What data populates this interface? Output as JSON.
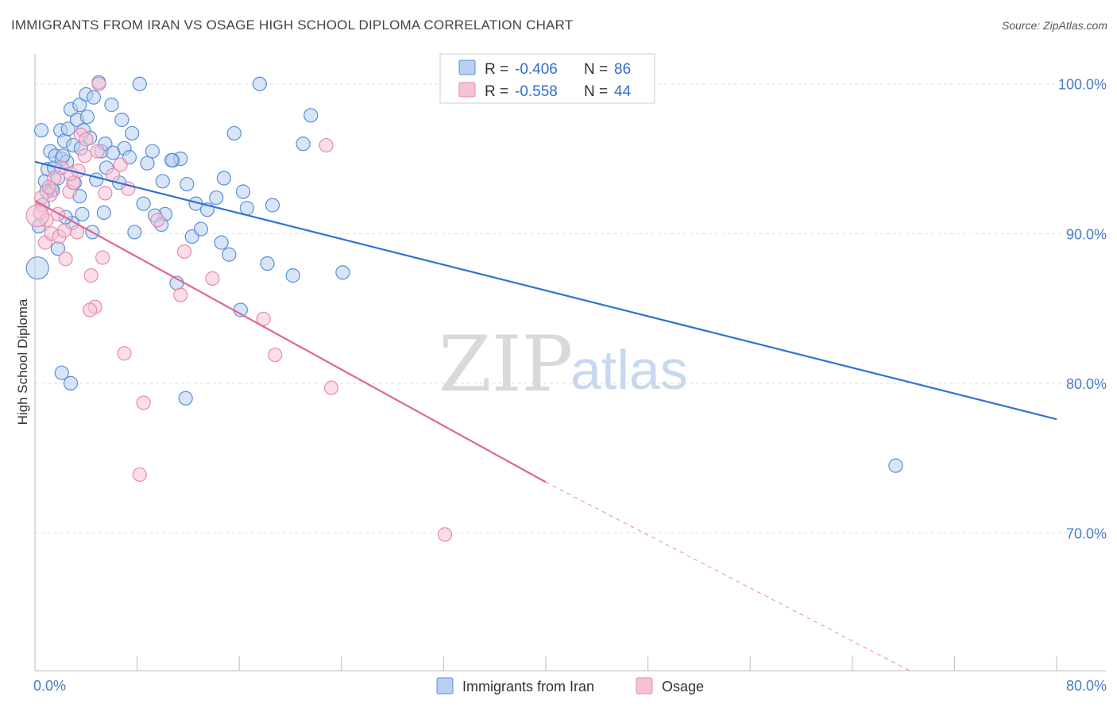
{
  "title": "IMMIGRANTS FROM IRAN VS OSAGE HIGH SCHOOL DIPLOMA CORRELATION CHART",
  "source": "Source: ZipAtlas.com",
  "watermark": {
    "zip": "ZIP",
    "atlas": "atlas"
  },
  "colors": {
    "blue_fill": "#b8d0f0",
    "blue_stroke": "#5a8fd8",
    "blue_line": "#2f72d0",
    "pink_fill": "#f5c2d4",
    "pink_stroke": "#e98aab",
    "pink_line": "#e0658f",
    "grid": "#dddddd",
    "axis_label": "#4a7cc9"
  },
  "legend": {
    "rows": [
      {
        "r_label": "R = ",
        "r_value": "-0.406",
        "n_label": "N = ",
        "n_value": "86",
        "series": "blue"
      },
      {
        "r_label": "R = ",
        "r_value": "-0.558",
        "n_label": "N = ",
        "n_value": "44",
        "series": "pink"
      }
    ]
  },
  "chart_data": {
    "type": "scatter",
    "title": "IMMIGRANTS FROM IRAN VS OSAGE HIGH SCHOOL DIPLOMA CORRELATION CHART",
    "xlabel": "",
    "ylabel": "High School Diploma",
    "xlim": [
      0,
      80
    ],
    "ylim": [
      60.8,
      102
    ],
    "x_tick_labels": [
      {
        "value": 0,
        "label": "0.0%"
      },
      {
        "value": 80,
        "label": "80.0%"
      }
    ],
    "y_tick_labels": [
      {
        "value": 100,
        "label": "100.0%"
      },
      {
        "value": 90,
        "label": "90.0%"
      },
      {
        "value": 80,
        "label": "80.0%"
      },
      {
        "value": 70,
        "label": "70.0%"
      }
    ],
    "grid": true,
    "legend_position": "top-center",
    "series": [
      {
        "name": "Immigrants from Iran",
        "color": "#5a8fd8",
        "trend": {
          "x0": 0,
          "y0": 94.8,
          "x1": 80,
          "y1": 77.6
        },
        "points": [
          [
            0.5,
            96.9
          ],
          [
            0.8,
            93.5
          ],
          [
            1,
            94.3
          ],
          [
            1.2,
            95.5
          ],
          [
            1.3,
            93.0
          ],
          [
            1.5,
            94.4
          ],
          [
            1.6,
            95.2
          ],
          [
            1.8,
            93.7
          ],
          [
            2,
            96.9
          ],
          [
            2.1,
            95.0
          ],
          [
            2.3,
            96.2
          ],
          [
            2.5,
            94.8
          ],
          [
            2.6,
            97.0
          ],
          [
            2.8,
            98.3
          ],
          [
            3,
            95.9
          ],
          [
            3.1,
            93.4
          ],
          [
            3.3,
            97.6
          ],
          [
            3.5,
            98.6
          ],
          [
            3.6,
            95.7
          ],
          [
            4,
            99.3
          ],
          [
            4.1,
            97.8
          ],
          [
            4.3,
            96.4
          ],
          [
            4.6,
            99.1
          ],
          [
            5,
            100.1
          ],
          [
            5.2,
            95.5
          ],
          [
            5.5,
            96.0
          ],
          [
            6,
            98.6
          ],
          [
            6.8,
            97.6
          ],
          [
            7,
            95.7
          ],
          [
            7.4,
            95.1
          ],
          [
            7.6,
            96.7
          ],
          [
            8.2,
            100.0
          ],
          [
            8.8,
            94.7
          ],
          [
            9.2,
            95.5
          ],
          [
            10,
            93.5
          ],
          [
            10.2,
            91.3
          ],
          [
            10.8,
            94.9
          ],
          [
            11.4,
            95.0
          ],
          [
            11.9,
            93.3
          ],
          [
            12.6,
            92.0
          ],
          [
            13.5,
            91.6
          ],
          [
            14.2,
            92.4
          ],
          [
            14.6,
            89.4
          ],
          [
            15.2,
            88.6
          ],
          [
            15.6,
            96.7
          ],
          [
            16.1,
            84.9
          ],
          [
            16.6,
            91.7
          ],
          [
            17.6,
            100.0
          ],
          [
            18.2,
            88.0
          ],
          [
            18.6,
            91.9
          ],
          [
            20.2,
            87.2
          ],
          [
            21,
            96.0
          ],
          [
            21.6,
            97.9
          ],
          [
            24.1,
            87.4
          ],
          [
            0.6,
            91.9
          ],
          [
            1.8,
            89.0
          ],
          [
            2.9,
            90.7
          ],
          [
            3.7,
            91.3
          ],
          [
            4.5,
            90.1
          ],
          [
            5.4,
            91.4
          ],
          [
            6.6,
            93.4
          ],
          [
            7.8,
            90.1
          ],
          [
            9.4,
            91.2
          ],
          [
            9.9,
            90.6
          ],
          [
            11.1,
            86.7
          ],
          [
            11.8,
            79.0
          ],
          [
            2.1,
            80.7
          ],
          [
            2.8,
            80.0
          ],
          [
            0.3,
            90.5
          ],
          [
            1.4,
            92.9
          ],
          [
            2.4,
            91.1
          ],
          [
            3.5,
            92.5
          ],
          [
            4.8,
            93.6
          ],
          [
            0.9,
            92.8
          ],
          [
            8.5,
            92.0
          ],
          [
            12.3,
            89.8
          ],
          [
            13,
            90.3
          ],
          [
            14.8,
            93.7
          ],
          [
            16.3,
            92.8
          ],
          [
            10.7,
            94.9
          ],
          [
            6.1,
            95.4
          ],
          [
            5.6,
            94.4
          ],
          [
            3.8,
            96.9
          ],
          [
            2.2,
            95.2
          ],
          [
            67.4,
            74.5
          ],
          [
            0.2,
            87.7
          ]
        ]
      },
      {
        "name": "Osage",
        "color": "#e98aab",
        "trend": {
          "x0": 0,
          "y0": 92.2,
          "x1": 40,
          "y1": 73.4
        },
        "trend_dashed": {
          "x0": 40,
          "y0": 73.4,
          "x1": 68.5,
          "y1": 60.8
        },
        "points": [
          [
            0.4,
            91.4
          ],
          [
            0.8,
            89.4
          ],
          [
            1.3,
            90.0
          ],
          [
            1.5,
            93.7
          ],
          [
            1.8,
            91.3
          ],
          [
            2.1,
            94.4
          ],
          [
            2.4,
            88.3
          ],
          [
            2.7,
            92.8
          ],
          [
            3.0,
            93.4
          ],
          [
            3.3,
            90.1
          ],
          [
            3.6,
            96.6
          ],
          [
            4.0,
            96.3
          ],
          [
            4.4,
            87.2
          ],
          [
            4.7,
            85.1
          ],
          [
            5.3,
            88.4
          ],
          [
            5.5,
            92.7
          ],
          [
            6.7,
            94.6
          ],
          [
            7.0,
            82.0
          ],
          [
            7.3,
            93.0
          ],
          [
            8.2,
            73.9
          ],
          [
            8.5,
            78.7
          ],
          [
            9.6,
            90.9
          ],
          [
            11.4,
            85.9
          ],
          [
            11.7,
            88.8
          ],
          [
            13.9,
            87.0
          ],
          [
            17.9,
            84.3
          ],
          [
            18.8,
            81.9
          ],
          [
            22.8,
            95.9
          ],
          [
            23.2,
            79.7
          ],
          [
            32.1,
            69.9
          ],
          [
            5.0,
            100.0
          ],
          [
            1.2,
            92.6
          ],
          [
            2.8,
            94.0
          ],
          [
            3.9,
            95.2
          ],
          [
            0.9,
            90.9
          ],
          [
            1.9,
            89.8
          ],
          [
            4.3,
            84.9
          ],
          [
            6.1,
            93.9
          ],
          [
            0.5,
            92.4
          ],
          [
            2.3,
            90.2
          ],
          [
            3.4,
            94.2
          ],
          [
            1.1,
            93.1
          ],
          [
            4.9,
            95.5
          ],
          [
            0.2,
            91.2
          ]
        ]
      }
    ]
  },
  "bottom_legend": [
    {
      "label": "Immigrants from Iran",
      "series": "blue"
    },
    {
      "label": "Osage",
      "series": "pink"
    }
  ]
}
